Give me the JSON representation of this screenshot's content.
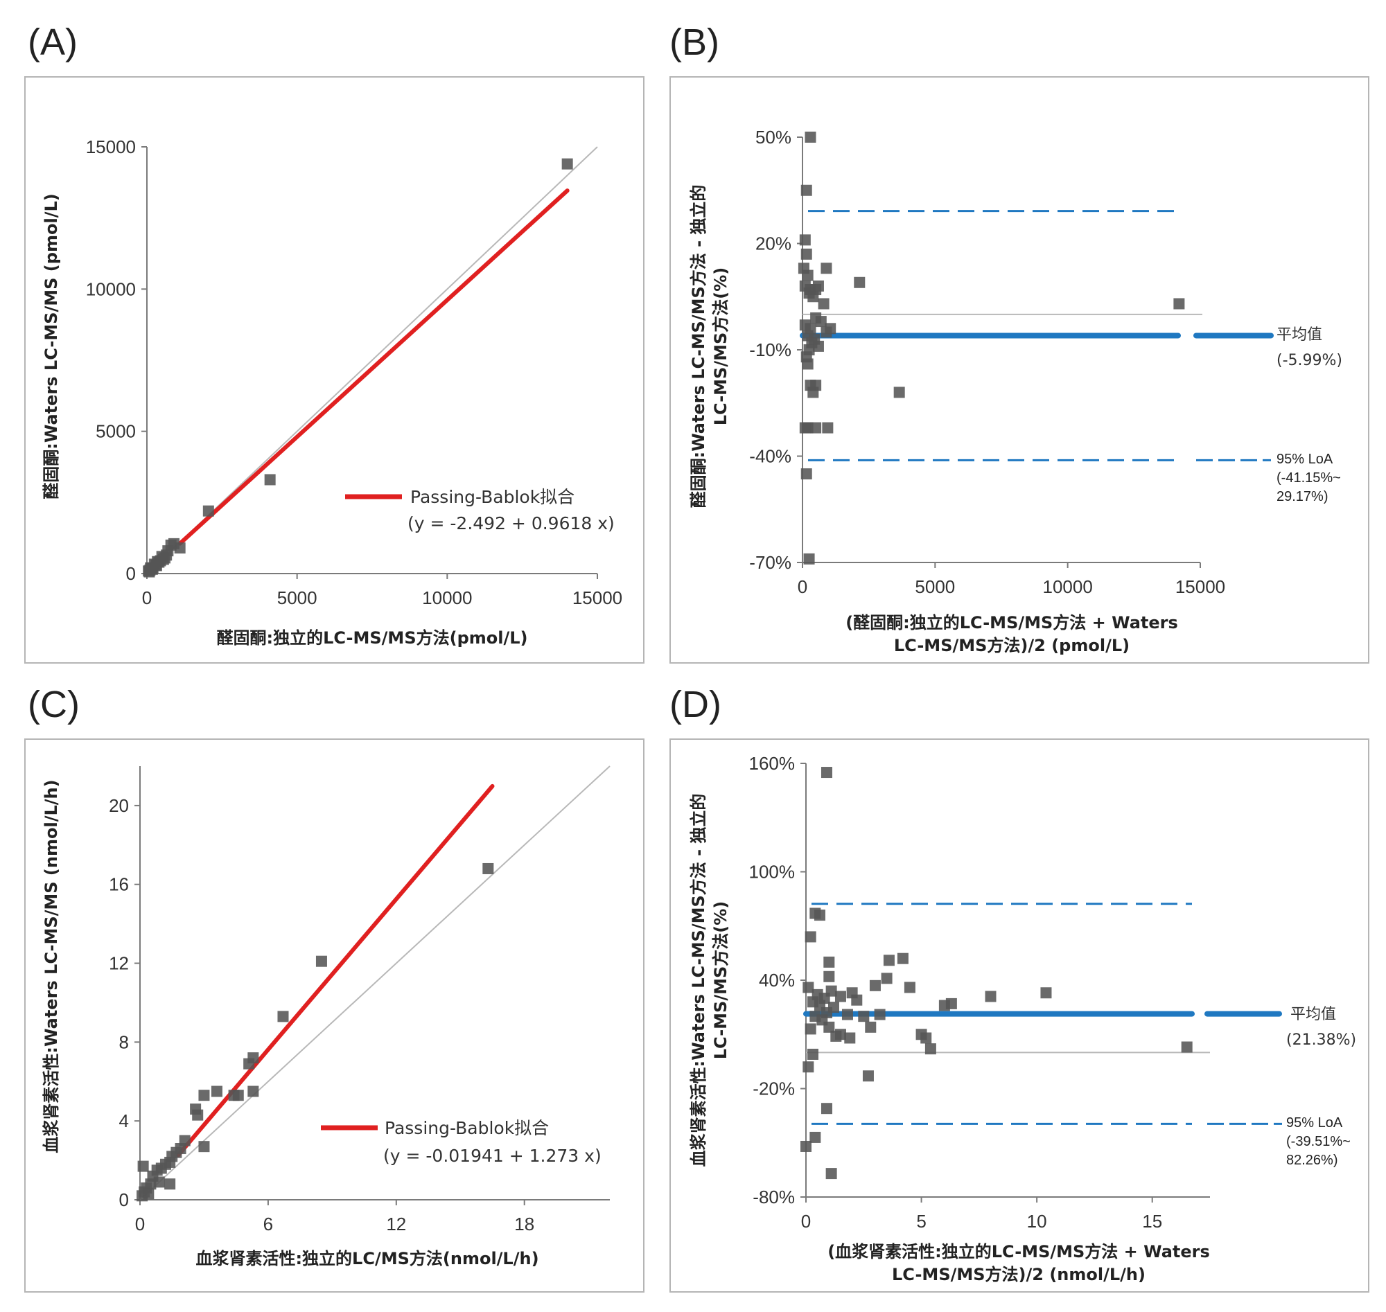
{
  "chart_data": [
    {
      "panel": "(A)",
      "type": "scatter",
      "xlabel": "醛固酮:独立的LC-MS/MS方法(pmol/L)",
      "ylabel": "醛固酮:Waters LC-MS/MS (pmol/L)",
      "xlim": [
        0,
        15000
      ],
      "ylim": [
        0,
        15000
      ],
      "xticks": [
        "0",
        "5000",
        "10000",
        "15000"
      ],
      "yticks": [
        "0",
        "5000",
        "10000",
        "15000"
      ],
      "legend": "Passing-Bablok拟合",
      "equation": "(y = -2.492 + 0.9618 x)",
      "fit": {
        "intercept": -2.492,
        "slope": 0.9618,
        "x_range": [
          1100,
          14000
        ]
      },
      "identity_line": [
        0,
        15000
      ],
      "points": [
        [
          14000,
          14400
        ],
        [
          4100,
          3300
        ],
        [
          2050,
          2200
        ],
        [
          1100,
          900
        ],
        [
          900,
          1050
        ],
        [
          800,
          1000
        ],
        [
          700,
          800
        ],
        [
          650,
          650
        ],
        [
          600,
          550
        ],
        [
          500,
          600
        ],
        [
          450,
          450
        ],
        [
          400,
          400
        ],
        [
          350,
          420
        ],
        [
          300,
          300
        ],
        [
          250,
          330
        ],
        [
          200,
          200
        ],
        [
          150,
          180
        ],
        [
          100,
          120
        ],
        [
          80,
          60
        ],
        [
          50,
          90
        ],
        [
          550,
          500
        ],
        [
          320,
          280
        ],
        [
          180,
          150
        ],
        [
          120,
          200
        ]
      ]
    },
    {
      "panel": "(B)",
      "type": "scatter",
      "xlabel": "(醛固酮:独立的LC-MS/MS方法 + Waters LC-MS/MS方法)/2 (pmol/L)",
      "xlabel_line1": "(醛固酮:独立的LC-MS/MS方法 + Waters",
      "xlabel_line2": "LC-MS/MS方法)/2 (pmol/L)",
      "ylabel": "醛固酮:Waters LC-MS/MS方法 - 独立的LC-MS/MS方法(%)",
      "ylabel_line1": "醛固酮:Waters LC-MS/MS方法 - 独立的",
      "ylabel_line2": "LC-MS/MS方法(%)",
      "xlim": [
        0,
        15000
      ],
      "ylim": [
        -70,
        50
      ],
      "xticks": [
        "0",
        "5000",
        "10000",
        "15000"
      ],
      "yticks": [
        "50%",
        "20%",
        "-10%",
        "-40%",
        "-70%"
      ],
      "zero_line": 0,
      "mean": -5.99,
      "loa_upper": 29.17,
      "loa_lower": -41.15,
      "mean_label": "平均值",
      "mean_value_label": "(-5.99%)",
      "loa_label_1": "95% LoA",
      "loa_label_2": "(-41.15%~",
      "loa_label_3": "29.17%)",
      "points": [
        [
          300,
          50
        ],
        [
          150,
          35
        ],
        [
          100,
          21
        ],
        [
          150,
          17
        ],
        [
          50,
          13
        ],
        [
          200,
          11
        ],
        [
          300,
          7
        ],
        [
          100,
          8
        ],
        [
          250,
          6
        ],
        [
          400,
          5
        ],
        [
          500,
          7
        ],
        [
          800,
          3
        ],
        [
          900,
          13
        ],
        [
          2150,
          9
        ],
        [
          14200,
          3
        ],
        [
          600,
          8
        ],
        [
          700,
          -2
        ],
        [
          300,
          -4
        ],
        [
          200,
          -6
        ],
        [
          500,
          -1
        ],
        [
          100,
          -3
        ],
        [
          250,
          -10
        ],
        [
          150,
          -12
        ],
        [
          350,
          -8
        ],
        [
          450,
          -7
        ],
        [
          900,
          -5
        ],
        [
          1050,
          -4
        ],
        [
          600,
          -9
        ],
        [
          200,
          -14
        ],
        [
          300,
          -20
        ],
        [
          400,
          -22
        ],
        [
          500,
          -20
        ],
        [
          3650,
          -22
        ],
        [
          100,
          -32
        ],
        [
          200,
          -32
        ],
        [
          500,
          -32
        ],
        [
          950,
          -32
        ],
        [
          150,
          -45
        ],
        [
          250,
          -69
        ]
      ]
    },
    {
      "panel": "(C)",
      "type": "scatter",
      "xlabel": "血浆肾素活性:独立的LC/MS方法(nmol/L/h)",
      "ylabel": "血浆肾素活性:Waters LC-MS/MS (nmol/L/h)",
      "xlim": [
        0,
        22
      ],
      "ylim": [
        0,
        22
      ],
      "xticks": [
        "0",
        "6",
        "12",
        "18"
      ],
      "yticks": [
        "0",
        "4",
        "8",
        "12",
        "16",
        "20"
      ],
      "legend": "Passing-Bablok拟合",
      "equation": "(y = -0.01941 + 1.273 x)",
      "fit": {
        "intercept": -0.01941,
        "slope": 1.273,
        "x_range": [
          1.8,
          16.5
        ]
      },
      "identity_line": [
        0,
        22
      ],
      "points": [
        [
          16.3,
          16.8
        ],
        [
          8.5,
          12.1
        ],
        [
          6.7,
          9.3
        ],
        [
          5.3,
          7.2
        ],
        [
          5.1,
          6.9
        ],
        [
          5.3,
          5.5
        ],
        [
          4.6,
          5.3
        ],
        [
          4.4,
          5.3
        ],
        [
          3.6,
          5.5
        ],
        [
          3.0,
          5.3
        ],
        [
          2.6,
          4.6
        ],
        [
          2.7,
          4.3
        ],
        [
          3.0,
          2.7
        ],
        [
          2.1,
          3.0
        ],
        [
          1.9,
          2.6
        ],
        [
          1.7,
          2.4
        ],
        [
          1.5,
          2.2
        ],
        [
          1.4,
          1.9
        ],
        [
          1.2,
          1.8
        ],
        [
          1.0,
          1.6
        ],
        [
          0.8,
          1.5
        ],
        [
          0.6,
          1.2
        ],
        [
          0.5,
          0.8
        ],
        [
          0.3,
          0.6
        ],
        [
          0.2,
          0.4
        ],
        [
          0.1,
          0.2
        ],
        [
          0.15,
          1.7
        ],
        [
          1.4,
          0.8
        ],
        [
          0.9,
          0.9
        ],
        [
          0.4,
          0.3
        ]
      ]
    },
    {
      "panel": "(D)",
      "type": "scatter",
      "xlabel": "(血浆肾素活性:独立的LC-MS/MS方法 + Waters LC-MS/MS方法)/2 (nmol/L/h)",
      "xlabel_line1": "(血浆肾素活性:独立的LC-MS/MS方法 + Waters",
      "xlabel_line2": "LC-MS/MS方法)/2 (nmol/L/h)",
      "ylabel": "血浆肾素活性:Waters LC-MS/MS方法 - 独立的LC-MS/MS方法(%)",
      "ylabel_line1": "血浆肾素活性:Waters LC-MS/MS方法 - 独立的",
      "ylabel_line2": "LC-MS/MS方法(%)",
      "xlim": [
        0,
        17.5
      ],
      "ylim": [
        -80,
        160
      ],
      "xticks": [
        "0",
        "5",
        "10",
        "15"
      ],
      "yticks": [
        "160%",
        "100%",
        "40%",
        "-20%",
        "-80%"
      ],
      "zero_line": 0,
      "mean": 21.38,
      "loa_upper": 82.26,
      "loa_lower": -39.51,
      "mean_label": "平均值",
      "mean_value_label": "(21.38%)",
      "loa_label_1": "95% LoA",
      "loa_label_2": "(-39.51%~",
      "loa_label_3": "82.26%)",
      "points": [
        [
          0.9,
          155
        ],
        [
          0.4,
          77
        ],
        [
          0.6,
          76
        ],
        [
          0.2,
          64
        ],
        [
          1.0,
          50
        ],
        [
          3.6,
          51
        ],
        [
          4.2,
          52
        ],
        [
          1.0,
          42
        ],
        [
          3.5,
          41
        ],
        [
          4.5,
          36
        ],
        [
          3.0,
          37
        ],
        [
          0.1,
          36
        ],
        [
          1.1,
          34
        ],
        [
          0.5,
          32
        ],
        [
          0.8,
          30
        ],
        [
          1.5,
          31
        ],
        [
          2.0,
          33
        ],
        [
          2.2,
          29
        ],
        [
          0.3,
          28
        ],
        [
          0.6,
          26
        ],
        [
          1.2,
          25
        ],
        [
          0.9,
          22
        ],
        [
          1.8,
          21
        ],
        [
          2.5,
          20
        ],
        [
          3.2,
          21
        ],
        [
          0.4,
          20
        ],
        [
          0.7,
          18
        ],
        [
          1.0,
          14
        ],
        [
          0.2,
          13
        ],
        [
          1.5,
          10
        ],
        [
          1.9,
          8
        ],
        [
          2.8,
          14
        ],
        [
          5.0,
          10
        ],
        [
          5.2,
          8
        ],
        [
          5.4,
          2
        ],
        [
          1.3,
          9
        ],
        [
          6.0,
          26
        ],
        [
          6.3,
          27
        ],
        [
          8.0,
          31
        ],
        [
          10.4,
          33
        ],
        [
          16.5,
          3
        ],
        [
          0.3,
          -1
        ],
        [
          0.1,
          -8
        ],
        [
          2.7,
          -13
        ],
        [
          0.9,
          -31
        ],
        [
          0.4,
          -47
        ],
        [
          0.0,
          -52
        ],
        [
          1.1,
          -67
        ]
      ]
    }
  ]
}
